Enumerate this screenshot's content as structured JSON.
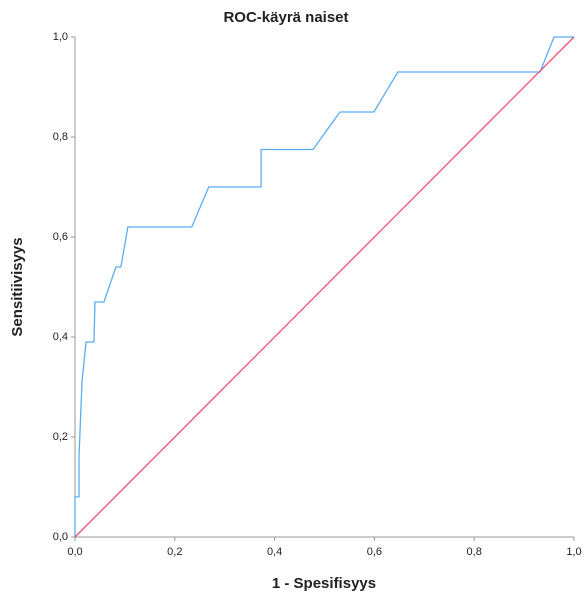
{
  "chart_data": {
    "type": "line",
    "title": "ROC-käyrä naiset",
    "x_label": "1 - Spesifisyys",
    "y_label": "Sensitiivisyys",
    "xlim": [
      0,
      1
    ],
    "ylim": [
      0,
      1
    ],
    "xticks": [
      {
        "value": 0,
        "label": "0,0"
      },
      {
        "value": 0.2,
        "label": "0,2"
      },
      {
        "value": 0.4,
        "label": "0,4"
      },
      {
        "value": 0.6,
        "label": "0,6"
      },
      {
        "value": 0.8,
        "label": "0,8"
      },
      {
        "value": 1,
        "label": "1,0"
      }
    ],
    "yticks": [
      {
        "value": 0,
        "label": "0,0"
      },
      {
        "value": 0.2,
        "label": "0,2"
      },
      {
        "value": 0.4,
        "label": "0,4"
      },
      {
        "value": 0.6,
        "label": "0,6"
      },
      {
        "value": 0.8,
        "label": "0,8"
      },
      {
        "value": 1,
        "label": "1,0"
      }
    ],
    "series": [
      {
        "color": "#5aaef0",
        "x": [
          0,
          0,
          0.008,
          0.008,
          0.014,
          0.022,
          0.038,
          0.04,
          0.058,
          0.082,
          0.092,
          0.106,
          0.234,
          0.268,
          0.373,
          0.373,
          0.477,
          0.531,
          0.599,
          0.647,
          0.932,
          0.96,
          1
        ],
        "values": [
          0,
          0.08,
          0.08,
          0.16,
          0.31,
          0.39,
          0.39,
          0.47,
          0.47,
          0.54,
          0.54,
          0.62,
          0.62,
          0.7,
          0.7,
          0.775,
          0.775,
          0.85,
          0.85,
          0.93,
          0.93,
          1,
          1
        ]
      },
      {
        "color": "#f0506e",
        "x": [
          0,
          1
        ],
        "values": [
          0,
          1
        ]
      }
    ]
  }
}
